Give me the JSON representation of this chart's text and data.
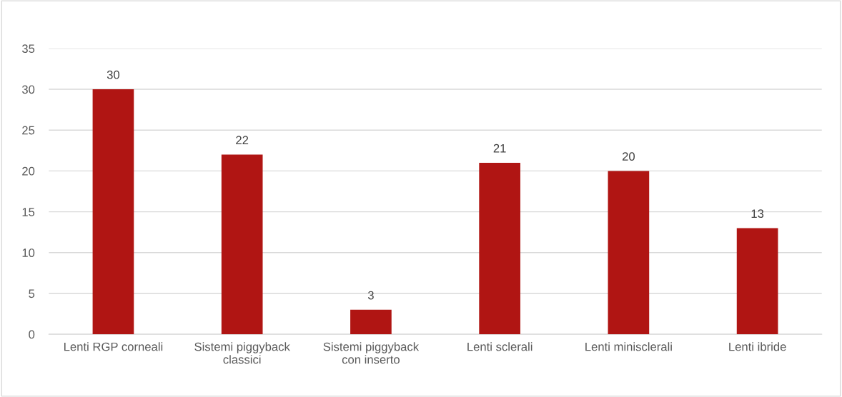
{
  "chart_data": {
    "type": "bar",
    "categories": [
      "Lenti RGP corneali",
      "Sistemi piggyback\nclassici",
      "Sistemi piggyback\ncon inserto",
      "Lenti sclerali",
      "Lenti minisclerali",
      "Lenti ibride"
    ],
    "values": [
      30,
      22,
      3,
      21,
      20,
      13
    ],
    "color": "#b01513",
    "ylim": [
      0,
      35
    ],
    "yticks": [
      0,
      5,
      10,
      15,
      20,
      25,
      30,
      35
    ],
    "grid": "y",
    "data_labels": true
  }
}
